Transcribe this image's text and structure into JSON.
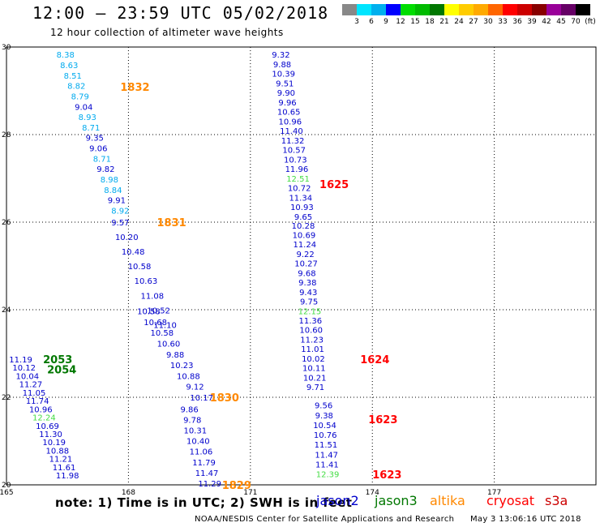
{
  "title": "12:00 — 23:59 UTC 05/02/2018",
  "subtitle": "12 hour collection of altimeter wave heights",
  "note": "note: 1) Time is in UTC; 2) SWH is in feet",
  "credit": "NOAA/NESDIS Center for Satellite Applications and Research",
  "credit_date": "May  3 13:06:16 UTC 2018",
  "satellites": [
    {
      "name": "jason2",
      "color": "#0000cc"
    },
    {
      "name": "jason3",
      "color": "#007700"
    },
    {
      "name": "altika",
      "color": "#ff8800"
    },
    {
      "name": "cryosat",
      "color": "#ff0000"
    },
    {
      "name": "s3a",
      "color": "#cc0000"
    }
  ],
  "color_scale": {
    "labels": [
      "3",
      "6",
      "9",
      "12",
      "15",
      "18",
      "21",
      "24",
      "27",
      "30",
      "33",
      "36",
      "39",
      "42",
      "45",
      "70",
      "(ft)"
    ],
    "colors": [
      "#888888",
      "#00e5ff",
      "#00b0ee",
      "#0000ff",
      "#00dd00",
      "#00bb00",
      "#007700",
      "#ffff00",
      "#ffcc00",
      "#ffaa00",
      "#ff6600",
      "#ff0000",
      "#cc0000",
      "#880000",
      "#990099",
      "#660066",
      "#000000"
    ]
  },
  "chart_data": {
    "type": "scatter",
    "title": "12:00 — 23:59 UTC 05/02/2018",
    "subtitle": "12 hour collection of altimeter wave heights",
    "xlim": [
      165,
      179.5
    ],
    "ylim": [
      20,
      30
    ],
    "x_ticks": [
      165,
      168,
      171,
      174,
      177
    ],
    "y_ticks": [
      20,
      22,
      24,
      26,
      28,
      30
    ],
    "grid": true,
    "tracks": [
      {
        "label": "1832",
        "label_color": "#ff8800",
        "label_pos": [
          167.8,
          29.09
        ],
        "x0": 166.45,
        "y0": 29.83,
        "x1": 167.8,
        "y1": 26.27,
        "values": [
          "8.38",
          "8.63",
          "8.51",
          "8.82",
          "8.79",
          "9.04",
          "8.93",
          "8.71",
          "9.35",
          "9.06",
          "8.71",
          "9.82",
          "8.98",
          "8.84",
          "9.91",
          "8.92"
        ],
        "colors": [
          "#00aaee",
          "#00aaee",
          "#00aaee",
          "#00aaee",
          "#00aaee",
          "#0000cc",
          "#00aaee",
          "#00aaee",
          "#0000cc",
          "#0000cc",
          "#00aaee",
          "#0000cc",
          "#00aaee",
          "#00aaee",
          "#0000cc",
          "#00aaee"
        ]
      },
      {
        "label": "1831",
        "label_color": "#ff8800",
        "label_pos": [
          168.7,
          26.0
        ],
        "x0": 167.8,
        "y0": 26.0,
        "x1": 168.9,
        "y1": 23.66,
        "values": [
          "9.57",
          "10.20",
          "10.48",
          "10.58",
          "10.63",
          "11.08",
          "10.52",
          "11.10"
        ],
        "colors": [
          "#0000cc",
          "#0000cc",
          "#0000cc",
          "#0000cc",
          "#0000cc",
          "#0000cc",
          "#0000cc",
          "#0000cc"
        ]
      },
      {
        "label": "1830",
        "label_color": "#ff8800",
        "label_pos": [
          170.0,
          22.0
        ],
        "x0": 168.5,
        "y0": 23.97,
        "x1": 169.8,
        "y1": 22.0,
        "values": [
          "10.58",
          "10.68",
          "10.58",
          "10.60",
          "9.88",
          "10.23",
          "10.88",
          "9.12",
          "10.17"
        ],
        "colors": [
          "#0000cc",
          "#0000cc",
          "#0000cc",
          "#0000cc",
          "#0000cc",
          "#0000cc",
          "#0000cc",
          "#0000cc",
          "#0000cc"
        ]
      },
      {
        "label": "1829",
        "label_color": "#ff8800",
        "label_pos": [
          170.3,
          20.0
        ],
        "x0": 169.5,
        "y0": 21.73,
        "x1": 170.0,
        "y1": 20.04,
        "values": [
          "9.86",
          "9.78",
          "10.31",
          "10.40",
          "11.06",
          "11.79",
          "11.47",
          "11.29"
        ],
        "colors": [
          "#0000cc",
          "#0000cc",
          "#0000cc",
          "#0000cc",
          "#0000cc",
          "#0000cc",
          "#0000cc",
          "#0000cc"
        ]
      },
      {
        "label": "1625",
        "label_color": "#ff0000",
        "label_pos": [
          172.7,
          26.87
        ],
        "x0": 171.75,
        "y0": 29.83,
        "x1": 172.3,
        "y1": 26.13,
        "values": [
          "9.32",
          "9.88",
          "10.39",
          "9.51",
          "9.90",
          "9.96",
          "10.65",
          "10.96",
          "11.40",
          "11.32",
          "10.57",
          "10.73",
          "11.96",
          "12.51",
          "10.72",
          "11.34",
          "10.93",
          "9.65"
        ],
        "colors": [
          "#0000cc",
          "#0000cc",
          "#0000cc",
          "#0000cc",
          "#0000cc",
          "#0000cc",
          "#0000cc",
          "#0000cc",
          "#0000cc",
          "#0000cc",
          "#0000cc",
          "#0000cc",
          "#0000cc",
          "#44dd44",
          "#0000cc",
          "#0000cc",
          "#0000cc",
          "#0000cc"
        ]
      },
      {
        "label": "1624",
        "label_color": "#ff0000",
        "label_pos": [
          173.7,
          22.87
        ],
        "x0": 172.3,
        "y0": 25.93,
        "x1": 172.6,
        "y1": 22.24,
        "values": [
          "10.28",
          "10.69",
          "11.24",
          "9.22",
          "10.27",
          "9.68",
          "9.38",
          "9.43",
          "9.75",
          "12.15",
          "11.36",
          "10.60",
          "11.23",
          "11.01",
          "10.02",
          "10.11",
          "10.21",
          "9.71"
        ],
        "colors": [
          "#0000cc",
          "#0000cc",
          "#0000cc",
          "#0000cc",
          "#0000cc",
          "#0000cc",
          "#0000cc",
          "#0000cc",
          "#0000cc",
          "#44dd44",
          "#0000cc",
          "#0000cc",
          "#0000cc",
          "#0000cc",
          "#0000cc",
          "#0000cc",
          "#0000cc",
          "#0000cc"
        ]
      },
      {
        "label": "1623",
        "label_color": "#ff0000",
        "label_pos": [
          173.9,
          21.5
        ],
        "x0": 172.8,
        "y0": 21.82,
        "x1": 172.9,
        "y1": 20.25,
        "values": [
          "9.56",
          "9.38",
          "10.54",
          "10.76",
          "11.51",
          "11.47",
          "11.41",
          "12.39"
        ],
        "colors": [
          "#0000cc",
          "#0000cc",
          "#0000cc",
          "#0000cc",
          "#0000cc",
          "#0000cc",
          "#0000cc",
          "#44dd44"
        ]
      },
      {
        "label": "1623",
        "label_color": "#ff0000",
        "label_pos": [
          174.0,
          20.24
        ],
        "x0": null,
        "y0": null,
        "x1": null,
        "y1": null,
        "values": [],
        "colors": []
      },
      {
        "label": "2053",
        "label_color": "#007700",
        "label_pos": [
          165.9,
          22.87
        ],
        "x0": 165.35,
        "y0": 22.87,
        "x1": 166.5,
        "y1": 20.22,
        "values": [
          "11.19",
          "10.12",
          "10.04",
          "11.27",
          "11.05",
          "11.74",
          "10.96",
          "12.24",
          "10.69",
          "11.30",
          "10.19",
          "10.88",
          "11.21",
          "11.61",
          "11.98"
        ],
        "colors": [
          "#0000cc",
          "#0000cc",
          "#0000cc",
          "#0000cc",
          "#0000cc",
          "#0000cc",
          "#0000cc",
          "#44dd44",
          "#0000cc",
          "#0000cc",
          "#0000cc",
          "#0000cc",
          "#0000cc",
          "#0000cc",
          "#0000cc"
        ]
      },
      {
        "label": "2054",
        "label_color": "#007700",
        "label_pos": [
          166.0,
          22.64
        ],
        "x0": null,
        "y0": null,
        "x1": null,
        "y1": null,
        "values": [],
        "colors": []
      }
    ]
  }
}
